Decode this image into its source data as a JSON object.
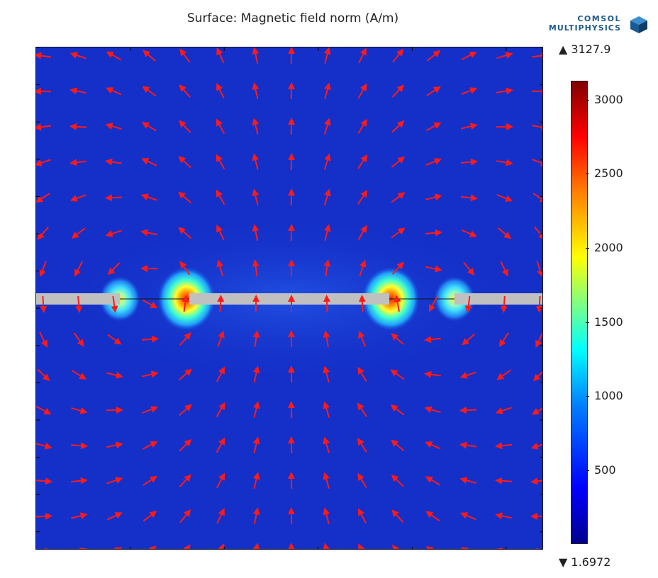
{
  "chart_data": {
    "type": "heatmap",
    "title": "Surface: Magnetic field norm (A/m)",
    "colormap": "rainbow",
    "colorbar": {
      "max_label": "▲ 3127.9",
      "min_label": "▼ 1.6972",
      "max": 3127.9,
      "min": 1.6972,
      "ticks": [
        "3000",
        "2500",
        "2000",
        "1500",
        "1000",
        "500"
      ],
      "tick_values": [
        3000,
        2500,
        2000,
        1500,
        1000,
        500
      ]
    },
    "arrow_color": "#ff1a1a",
    "conductor_color": "#c0c0c0",
    "background_field_color": "#1430c8"
  },
  "logo": {
    "line1": "COMSOL",
    "line2": "MULTIPHYSICS"
  }
}
